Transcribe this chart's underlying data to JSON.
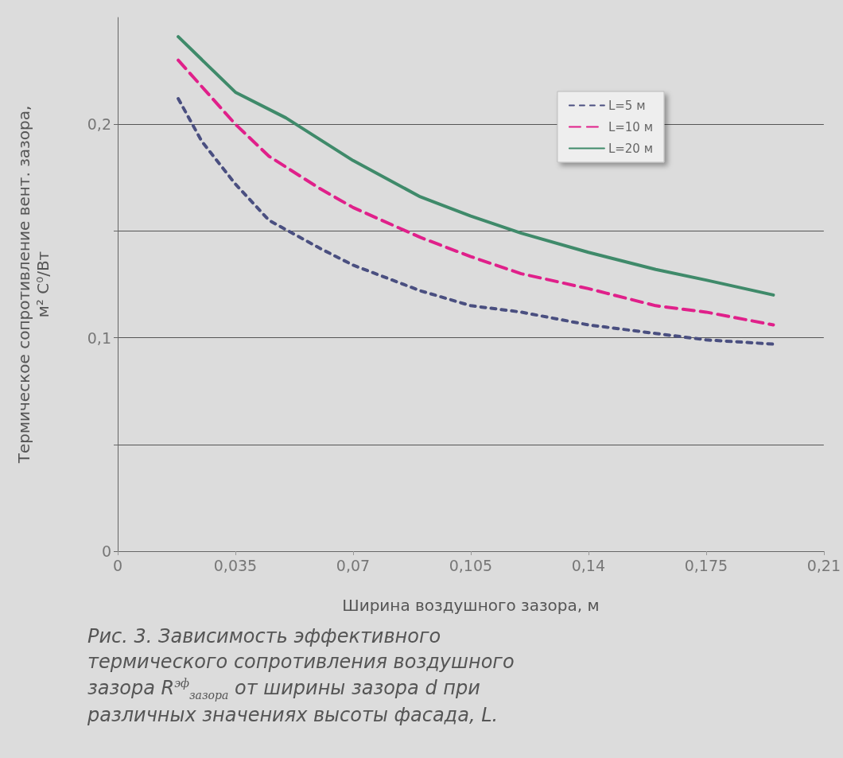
{
  "chart_data": {
    "type": "line",
    "xlabel": "Ширина воздушного зазора, м",
    "ylabel": "Термическое сопротивление вент. зазора,\nм² С⁰/Вт",
    "annotations": [
      "Рис. 3. Зависимость эффективного термического сопротивления воздушного зазора R$^{эф}$$_{зазора}$ от ширины зазора d при различных значениях высоты фасада, L."
    ],
    "xlim": [
      0,
      0.21
    ],
    "xticks": [
      0,
      {
        "value": 0.035,
        "label": "0,035"
      },
      {
        "value": 0.07,
        "label": "0,07"
      },
      {
        "value": 0.105,
        "label": "0,105"
      },
      {
        "value": 0.14,
        "label": "0,14"
      },
      {
        "value": 0.175,
        "label": "0,175"
      },
      {
        "value": 0.21,
        "label": "0,21"
      }
    ],
    "ylim": [
      0,
      0.25
    ],
    "yticks": [
      0,
      {
        "value": 0.05,
        "label": null
      },
      {
        "value": 0.1,
        "label": "0,1"
      },
      {
        "value": 0.15,
        "label": null
      },
      {
        "value": 0.2,
        "label": "0,2"
      }
    ],
    "grid": "y",
    "legend": "top right",
    "marker": "none",
    "series": [
      {
        "name": "L=5 м",
        "color": "#4a4f80",
        "line_style": "dotted",
        "x": [
          0.018,
          0.025,
          0.035,
          0.045,
          0.06,
          0.07,
          0.09,
          0.105,
          0.12,
          0.14,
          0.16,
          0.175,
          0.195
        ],
        "values": [
          0.212,
          0.192,
          0.172,
          0.155,
          0.142,
          0.134,
          0.122,
          0.115,
          0.112,
          0.106,
          0.102,
          0.099,
          0.097
        ]
      },
      {
        "name": "L=10 м",
        "color": "#e0208a",
        "line_style": "dashed",
        "x": [
          0.018,
          0.035,
          0.045,
          0.06,
          0.07,
          0.09,
          0.105,
          0.12,
          0.14,
          0.16,
          0.175,
          0.195
        ],
        "values": [
          0.23,
          0.2,
          0.185,
          0.17,
          0.161,
          0.147,
          0.138,
          0.13,
          0.123,
          0.115,
          0.112,
          0.106
        ]
      },
      {
        "name": "L=20 м",
        "color": "#3f8a6a",
        "line_style": "solid",
        "x": [
          0.018,
          0.035,
          0.05,
          0.07,
          0.09,
          0.105,
          0.12,
          0.14,
          0.16,
          0.175,
          0.195
        ],
        "values": [
          0.241,
          0.215,
          0.203,
          0.183,
          0.166,
          0.157,
          0.149,
          0.14,
          0.132,
          0.127,
          0.12
        ]
      }
    ]
  }
}
